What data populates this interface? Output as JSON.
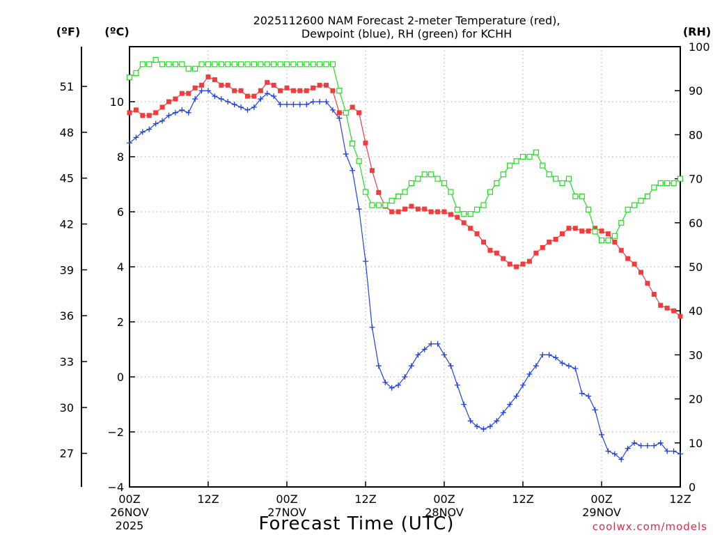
{
  "chart_data": {
    "type": "line",
    "title_line1": "2025112600 NAM Forecast 2-meter Temperature (red),",
    "title_line2": "Dewpoint (blue), RH (green) for KCHH",
    "xlabel": "Forecast Time (UTC)",
    "credit": "coolwx.com/models",
    "units": {
      "fahrenheit": "(ºF)",
      "celsius": "(ºC)",
      "rh": "(RH)"
    },
    "x_range_hours": [
      0,
      84
    ],
    "y_celsius_range": [
      -4,
      12
    ],
    "y_rh_range": [
      0,
      100
    ],
    "x_ticks": [
      {
        "hour": 0,
        "label": "00Z",
        "date": "26NOV",
        "year": "2025"
      },
      {
        "hour": 12,
        "label": "12Z"
      },
      {
        "hour": 24,
        "label": "00Z",
        "date": "27NOV"
      },
      {
        "hour": 36,
        "label": "12Z"
      },
      {
        "hour": 48,
        "label": "00Z",
        "date": "28NOV"
      },
      {
        "hour": 60,
        "label": "12Z"
      },
      {
        "hour": 72,
        "label": "00Z",
        "date": "29NOV"
      },
      {
        "hour": 84,
        "label": "12Z"
      }
    ],
    "celsius_ticks": [
      "-4",
      "-2",
      "0",
      "2",
      "4",
      "6",
      "8",
      "10"
    ],
    "fahrenheit_ticks": [
      "27",
      "30",
      "33",
      "36",
      "39",
      "42",
      "45",
      "48",
      "51"
    ],
    "rh_ticks": [
      "0",
      "10",
      "20",
      "30",
      "40",
      "50",
      "60",
      "70",
      "80",
      "90",
      "100"
    ],
    "series": [
      {
        "name": "2-meter Temperature (°C)",
        "color": "#f03c3c",
        "marker": "filled-square",
        "axis": "celsius",
        "values": [
          9.6,
          9.7,
          9.5,
          9.5,
          9.6,
          9.8,
          10.0,
          10.1,
          10.3,
          10.3,
          10.5,
          10.6,
          10.9,
          10.8,
          10.6,
          10.6,
          10.4,
          10.4,
          10.2,
          10.2,
          10.4,
          10.7,
          10.6,
          10.4,
          10.5,
          10.4,
          10.4,
          10.4,
          10.5,
          10.6,
          10.6,
          10.4,
          9.6,
          9.6,
          9.8,
          9.6,
          8.5,
          7.5,
          6.7,
          6.2,
          6.0,
          6.0,
          6.1,
          6.2,
          6.1,
          6.1,
          6.0,
          6.0,
          6.0,
          5.9,
          5.8,
          5.6,
          5.4,
          5.2,
          4.9,
          4.6,
          4.5,
          4.3,
          4.1,
          4.0,
          4.1,
          4.2,
          4.5,
          4.7,
          4.9,
          5.0,
          5.2,
          5.4,
          5.4,
          5.3,
          5.3,
          5.4,
          5.3,
          5.2,
          4.9,
          4.6,
          4.3,
          4.1,
          3.8,
          3.4,
          3.0,
          2.6,
          2.5,
          2.4,
          2.2
        ]
      },
      {
        "name": "Dewpoint (°C)",
        "color": "#2040e6",
        "marker": "plus",
        "axis": "celsius",
        "values": [
          8.5,
          8.7,
          8.9,
          9.0,
          9.2,
          9.3,
          9.5,
          9.6,
          9.7,
          9.6,
          10.1,
          10.4,
          10.4,
          10.2,
          10.1,
          10.0,
          9.9,
          9.8,
          9.7,
          9.8,
          10.1,
          10.3,
          10.2,
          9.9,
          9.9,
          9.9,
          9.9,
          9.9,
          10.0,
          10.0,
          10.0,
          9.7,
          9.4,
          8.1,
          7.5,
          6.1,
          4.2,
          1.8,
          0.4,
          -0.2,
          -0.4,
          -0.3,
          0.0,
          0.4,
          0.8,
          1.0,
          1.2,
          1.2,
          0.8,
          0.4,
          -0.3,
          -1.0,
          -1.6,
          -1.8,
          -1.9,
          -1.8,
          -1.6,
          -1.3,
          -1.0,
          -0.7,
          -0.3,
          0.1,
          0.4,
          0.8,
          0.8,
          0.7,
          0.5,
          0.4,
          0.3,
          -0.6,
          -0.7,
          -1.2,
          -2.1,
          -2.7,
          -2.8,
          -3.0,
          -2.6,
          -2.4,
          -2.5,
          -2.5,
          -2.5,
          -2.4,
          -2.7,
          -2.7,
          -2.8
        ]
      },
      {
        "name": "RH (%)",
        "color": "#20dc20",
        "marker": "open-square",
        "axis": "rh",
        "values": [
          93,
          94,
          96,
          96,
          97,
          96,
          96,
          96,
          96,
          95,
          95,
          96,
          96,
          96,
          96,
          96,
          96,
          96,
          96,
          96,
          96,
          96,
          96,
          96,
          96,
          96,
          96,
          96,
          96,
          96,
          96,
          96,
          90,
          85,
          78,
          74,
          67,
          64,
          64,
          64,
          65,
          66,
          67,
          69,
          70,
          71,
          71,
          70,
          69,
          67,
          63,
          62,
          62,
          63,
          64,
          67,
          69,
          71,
          73,
          74,
          75,
          75,
          76,
          73,
          71,
          70,
          69,
          70,
          66,
          66,
          63,
          58,
          56,
          56,
          57,
          60,
          63,
          64,
          65,
          66,
          68,
          69,
          69,
          69,
          70
        ]
      }
    ]
  }
}
